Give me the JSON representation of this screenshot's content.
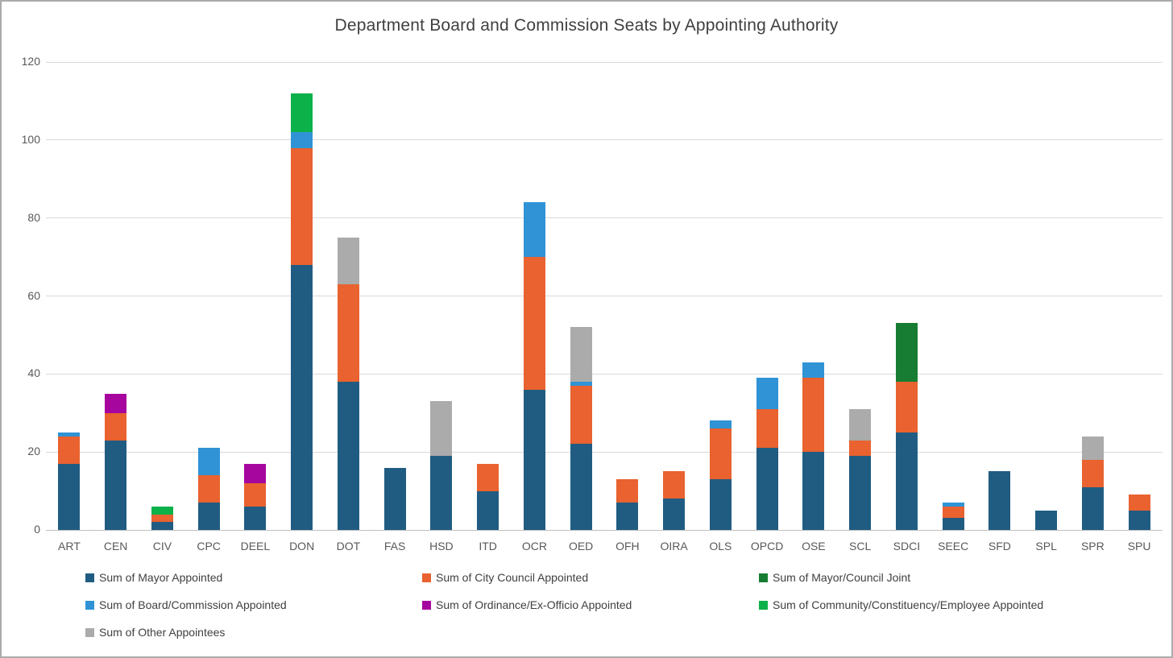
{
  "chart_data": {
    "type": "bar",
    "stacked": true,
    "title": "Department Board and Commission Seats by Appointing Authority",
    "xlabel": "",
    "ylabel": "",
    "ylim": [
      0,
      120
    ],
    "yticks": [
      0,
      20,
      40,
      60,
      80,
      100,
      120
    ],
    "grid": true,
    "legend_position": "bottom",
    "categories": [
      "ART",
      "CEN",
      "CIV",
      "CPC",
      "DEEL",
      "DON",
      "DOT",
      "FAS",
      "HSD",
      "ITD",
      "OCR",
      "OED",
      "OFH",
      "OIRA",
      "OLS",
      "OPCD",
      "OSE",
      "SCL",
      "SDCI",
      "SEEC",
      "SFD",
      "SPL",
      "SPR",
      "SPU"
    ],
    "series": [
      {
        "name": "Sum of Mayor Appointed",
        "color": "#205c82",
        "values": [
          17,
          23,
          2,
          7,
          6,
          68,
          38,
          16,
          19,
          10,
          36,
          22,
          7,
          8,
          13,
          21,
          20,
          19,
          25,
          3,
          15,
          5,
          11,
          5
        ]
      },
      {
        "name": "Sum of City Council Appointed",
        "color": "#e9622f",
        "values": [
          7,
          7,
          2,
          7,
          6,
          30,
          25,
          0,
          0,
          7,
          34,
          15,
          6,
          7,
          13,
          10,
          19,
          4,
          13,
          3,
          0,
          0,
          7,
          4
        ]
      },
      {
        "name": "Sum of Mayor/Council Joint",
        "color": "#177d33",
        "values": [
          0,
          0,
          0,
          0,
          0,
          0,
          0,
          0,
          0,
          0,
          0,
          0,
          0,
          0,
          0,
          0,
          0,
          0,
          15,
          0,
          0,
          0,
          0,
          0
        ]
      },
      {
        "name": "Sum of Board/Commission Appointed",
        "color": "#2f93d6",
        "values": [
          1,
          0,
          0,
          7,
          0,
          4,
          0,
          0,
          0,
          0,
          14,
          1,
          0,
          0,
          2,
          8,
          4,
          0,
          0,
          1,
          0,
          0,
          0,
          0
        ]
      },
      {
        "name": "Sum of Ordinance/Ex-Officio Appointed",
        "color": "#a6069e",
        "values": [
          0,
          5,
          0,
          0,
          5,
          0,
          0,
          0,
          0,
          0,
          0,
          0,
          0,
          0,
          0,
          0,
          0,
          0,
          0,
          0,
          0,
          0,
          0,
          0
        ]
      },
      {
        "name": "Sum of Community/Constituency/Employee Appointed",
        "color": "#0cb14a",
        "values": [
          0,
          0,
          2,
          0,
          0,
          10,
          0,
          0,
          0,
          0,
          0,
          0,
          0,
          0,
          0,
          0,
          0,
          0,
          0,
          0,
          0,
          0,
          0,
          0
        ]
      },
      {
        "name": "Sum of Other Appointees",
        "color": "#ababab",
        "values": [
          0,
          0,
          0,
          0,
          0,
          0,
          12,
          0,
          14,
          0,
          0,
          14,
          0,
          0,
          0,
          0,
          0,
          8,
          0,
          0,
          0,
          0,
          6,
          0
        ]
      }
    ],
    "style": {
      "gridline_color": "#d9d9d9",
      "axis_line_color": "#bfbfbf",
      "tick_label_color": "#595959",
      "title_color": "#404040",
      "legend_text_color": "#404040"
    }
  }
}
